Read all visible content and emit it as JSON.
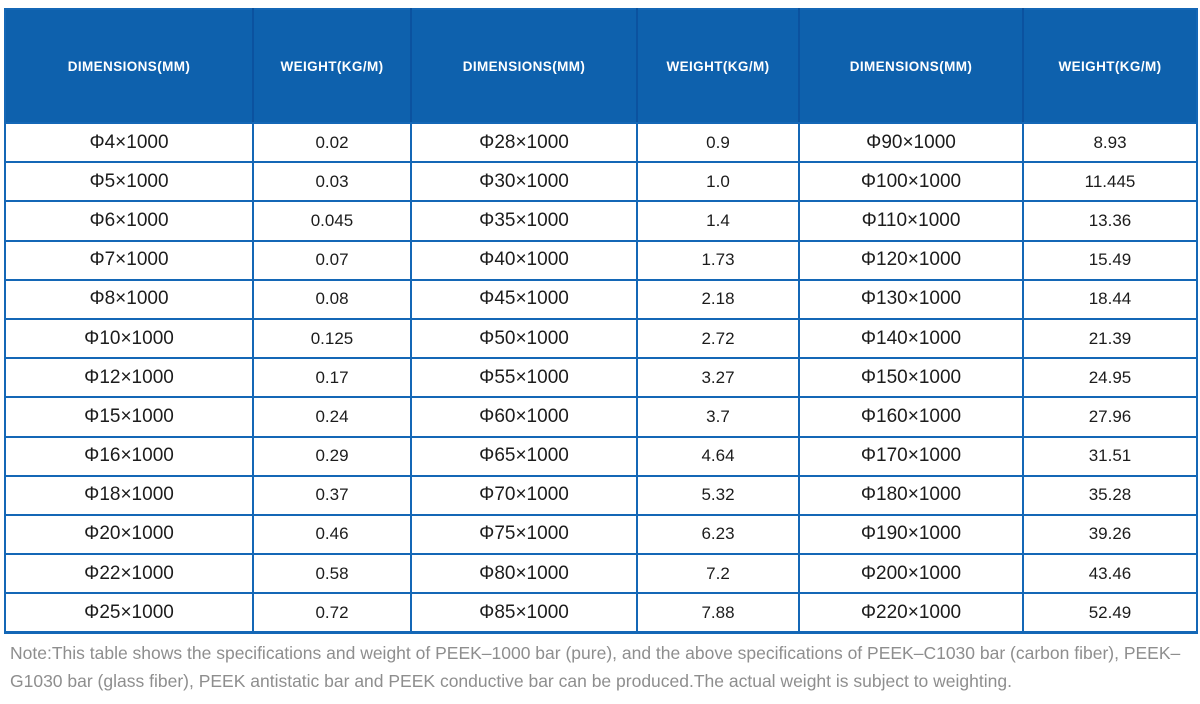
{
  "table": {
    "columns": [
      "DIMENSIONS(MM)",
      "WEIGHT(KG/M)",
      "DIMENSIONS(MM)",
      "WEIGHT(KG/M)",
      "DIMENSIONS(MM)",
      "WEIGHT(KG/M)"
    ],
    "rows": [
      [
        "Φ4×1000",
        "0.02",
        "Φ28×1000",
        "0.9",
        "Φ90×1000",
        "8.93"
      ],
      [
        "Φ5×1000",
        "0.03",
        "Φ30×1000",
        "1.0",
        "Φ100×1000",
        "11.445"
      ],
      [
        "Φ6×1000",
        "0.045",
        "Φ35×1000",
        "1.4",
        "Φ110×1000",
        "13.36"
      ],
      [
        "Φ7×1000",
        "0.07",
        "Φ40×1000",
        "1.73",
        "Φ120×1000",
        "15.49"
      ],
      [
        "Φ8×1000",
        "0.08",
        "Φ45×1000",
        "2.18",
        "Φ130×1000",
        "18.44"
      ],
      [
        "Φ10×1000",
        "0.125",
        "Φ50×1000",
        "2.72",
        "Φ140×1000",
        "21.39"
      ],
      [
        "Φ12×1000",
        "0.17",
        "Φ55×1000",
        "3.27",
        "Φ150×1000",
        "24.95"
      ],
      [
        "Φ15×1000",
        "0.24",
        "Φ60×1000",
        "3.7",
        "Φ160×1000",
        "27.96"
      ],
      [
        "Φ16×1000",
        "0.29",
        "Φ65×1000",
        "4.64",
        "Φ170×1000",
        "31.51"
      ],
      [
        "Φ18×1000",
        "0.37",
        "Φ70×1000",
        "5.32",
        "Φ180×1000",
        "35.28"
      ],
      [
        "Φ20×1000",
        "0.46",
        "Φ75×1000",
        "6.23",
        "Φ190×1000",
        "39.26"
      ],
      [
        "Φ22×1000",
        "0.58",
        "Φ80×1000",
        "7.2",
        "Φ200×1000",
        "43.46"
      ],
      [
        "Φ25×1000",
        "0.72",
        "Φ85×1000",
        "7.88",
        "Φ220×1000",
        "52.49"
      ]
    ]
  },
  "note": "Note:This table shows the specifications and weight of PEEK–1000 bar (pure), and the above specifications of PEEK–C1030 bar (carbon fiber), PEEK–G1030 bar (glass fiber), PEEK antistatic bar and PEEK conductive bar can be produced.The actual weight is subject to weighting.",
  "colors": {
    "header_bg": "#0e61ad",
    "header_text": "#ffffff",
    "header_separator": "#0b529f",
    "border": "#1467b6",
    "cell_text": "#1c1c1c",
    "note_text": "#8e8e8e"
  }
}
